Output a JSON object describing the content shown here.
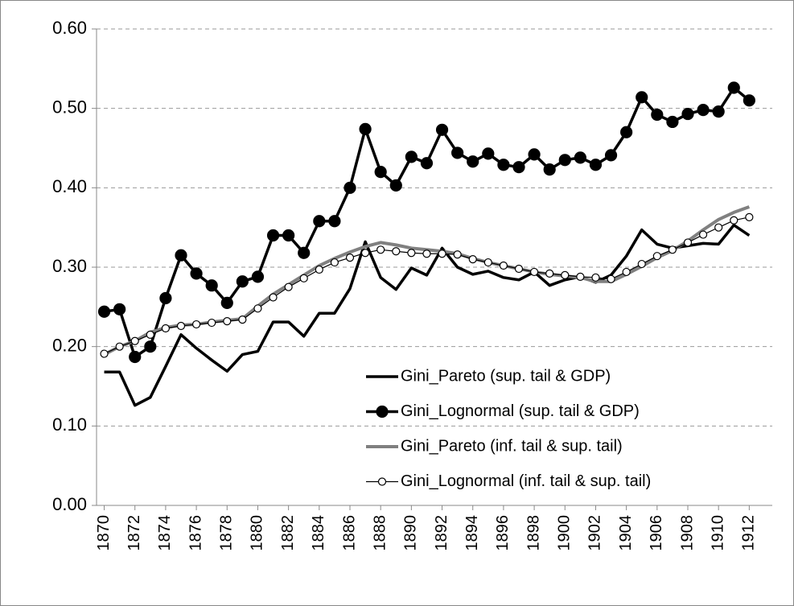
{
  "chart_data": {
    "type": "line",
    "x": [
      1870,
      1871,
      1872,
      1873,
      1874,
      1875,
      1876,
      1877,
      1878,
      1879,
      1880,
      1881,
      1882,
      1883,
      1884,
      1885,
      1886,
      1887,
      1888,
      1889,
      1890,
      1891,
      1892,
      1893,
      1894,
      1895,
      1896,
      1897,
      1898,
      1899,
      1900,
      1901,
      1902,
      1903,
      1904,
      1905,
      1906,
      1907,
      1908,
      1909,
      1910,
      1911,
      1912
    ],
    "xlim": [
      1869.5,
      1913.5
    ],
    "xticks": [
      1870,
      1872,
      1874,
      1876,
      1878,
      1880,
      1882,
      1884,
      1886,
      1888,
      1890,
      1892,
      1894,
      1896,
      1898,
      1900,
      1902,
      1904,
      1906,
      1908,
      1910,
      1912
    ],
    "ylim": [
      0,
      0.6
    ],
    "yticks": [
      {
        "value": 0,
        "label": "0.00"
      },
      {
        "value": 0.1,
        "label": "0.10"
      },
      {
        "value": 0.2,
        "label": "0.20"
      },
      {
        "value": 0.3,
        "label": "0.30"
      },
      {
        "value": 0.4,
        "label": "0.40"
      },
      {
        "value": 0.5,
        "label": "0.50"
      },
      {
        "value": 0.6,
        "label": "0.60"
      }
    ],
    "grid": true,
    "legend": "bottom-right",
    "series": [
      {
        "name": "Gini_Pareto (sup. tail & GDP)",
        "color": "#000000",
        "marker": "none",
        "line_width": 3.5,
        "values": [
          0.168,
          0.168,
          0.126,
          0.136,
          0.175,
          0.215,
          0.198,
          0.183,
          0.169,
          0.19,
          0.194,
          0.231,
          0.231,
          0.213,
          0.242,
          0.242,
          0.273,
          0.332,
          0.287,
          0.272,
          0.299,
          0.29,
          0.324,
          0.3,
          0.291,
          0.295,
          0.287,
          0.284,
          0.294,
          0.277,
          0.284,
          0.288,
          0.281,
          0.29,
          0.314,
          0.347,
          0.329,
          0.324,
          0.327,
          0.33,
          0.329,
          0.353,
          0.34
        ]
      },
      {
        "name": "Gini_Lognormal (sup. tail & GDP)",
        "color": "#000000",
        "marker": "filled",
        "line_width": 3.5,
        "values": [
          0.244,
          0.247,
          0.187,
          0.2,
          0.261,
          0.315,
          0.292,
          0.277,
          0.255,
          0.282,
          0.288,
          0.34,
          0.34,
          0.318,
          0.358,
          0.358,
          0.4,
          0.474,
          0.42,
          0.403,
          0.439,
          0.431,
          0.473,
          0.444,
          0.433,
          0.443,
          0.429,
          0.426,
          0.442,
          0.423,
          0.435,
          0.438,
          0.429,
          0.441,
          0.47,
          0.514,
          0.492,
          0.483,
          0.493,
          0.498,
          0.496,
          0.526,
          0.51
        ]
      },
      {
        "name": "Gini_Pareto (inf. tail & sup. tail)",
        "color": "#808080",
        "marker": "none",
        "line_width": 4,
        "values": [
          0.19,
          0.2,
          0.207,
          0.218,
          0.224,
          0.227,
          0.228,
          0.231,
          0.233,
          0.235,
          0.251,
          0.266,
          0.278,
          0.29,
          0.302,
          0.311,
          0.319,
          0.326,
          0.331,
          0.328,
          0.324,
          0.322,
          0.32,
          0.317,
          0.311,
          0.306,
          0.302,
          0.298,
          0.294,
          0.291,
          0.289,
          0.287,
          0.282,
          0.282,
          0.291,
          0.301,
          0.312,
          0.321,
          0.333,
          0.347,
          0.36,
          0.369,
          0.376
        ]
      },
      {
        "name": "Gini_Lognormal (inf. tail & sup. tail)",
        "color": "#000000",
        "marker": "open",
        "line_width": 1.2,
        "values": [
          0.191,
          0.2,
          0.207,
          0.215,
          0.223,
          0.226,
          0.228,
          0.23,
          0.232,
          0.234,
          0.248,
          0.262,
          0.275,
          0.286,
          0.297,
          0.306,
          0.312,
          0.318,
          0.322,
          0.32,
          0.318,
          0.317,
          0.317,
          0.316,
          0.31,
          0.306,
          0.302,
          0.298,
          0.294,
          0.292,
          0.29,
          0.288,
          0.287,
          0.285,
          0.294,
          0.304,
          0.314,
          0.322,
          0.331,
          0.341,
          0.35,
          0.359,
          0.363
        ]
      }
    ]
  }
}
